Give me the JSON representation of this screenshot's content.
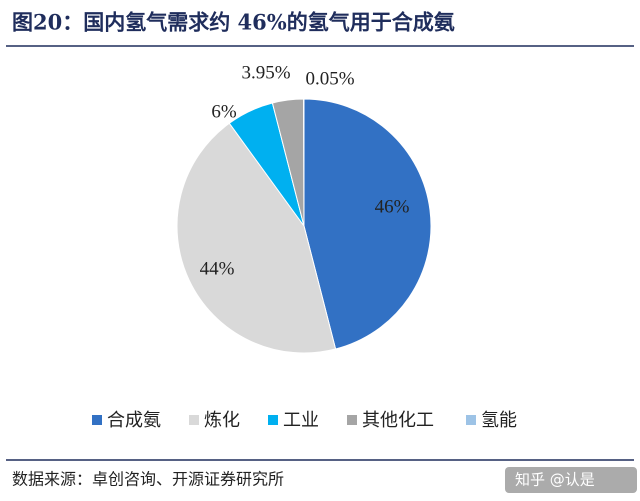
{
  "chart_data": {
    "type": "pie",
    "title": "图20：国内氢气需求约 46%的氢气用于合成氨",
    "categories": [
      "合成氨",
      "炼化",
      "工业",
      "其他化工",
      "氢能"
    ],
    "values": [
      46,
      44,
      6,
      3.95,
      0.05
    ],
    "value_labels": [
      "46%",
      "44%",
      "6%",
      "3.95%",
      "0.05%"
    ],
    "colors": [
      "#3271c4",
      "#d9d9d9",
      "#00b0f0",
      "#a5a5a5",
      "#9dc3e6"
    ],
    "legend": "bottom"
  },
  "source": "数据来源：卓创咨询、开源证券研究所",
  "watermark": "知乎 @认是"
}
